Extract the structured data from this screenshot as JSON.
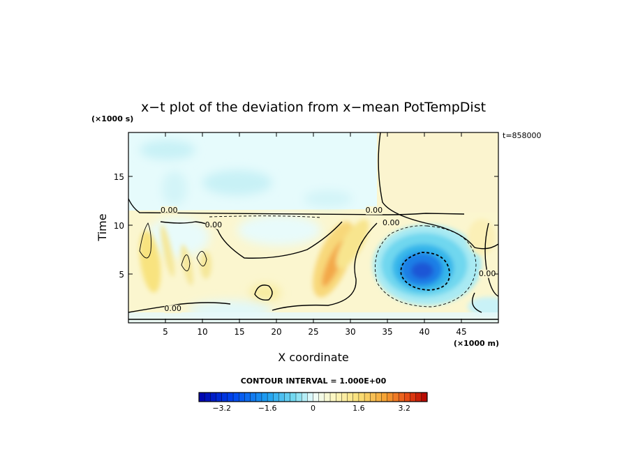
{
  "chart_data": {
    "type": "heatmap",
    "title": "x−t plot of the deviation from x−mean PotTempDist",
    "time_label": "t=858000",
    "xlabel": "X coordinate",
    "ylabel": "Time",
    "x_unit": "(×1000 m)",
    "y_unit": "(×1000 s)",
    "xlim": [
      0,
      50
    ],
    "ylim": [
      0,
      19.5
    ],
    "x_ticks": [
      5,
      10,
      15,
      20,
      25,
      30,
      35,
      40,
      45
    ],
    "y_ticks": [
      5,
      10,
      15
    ],
    "contour_interval_text": "CONTOUR INTERVAL = 1.000E+00",
    "contour_labels": [
      {
        "text": "0.00",
        "x": 5.5,
        "y": 11.3
      },
      {
        "text": "0.00",
        "x": 11.5,
        "y": 9.8
      },
      {
        "text": "0.00",
        "x": 33.2,
        "y": 11.3
      },
      {
        "text": "0.00",
        "x": 35.5,
        "y": 10.0
      },
      {
        "text": "0.00",
        "x": 48.5,
        "y": 4.8
      },
      {
        "text": "0.00",
        "x": 6.0,
        "y": 1.2
      }
    ],
    "features": [
      {
        "name": "cold anomaly",
        "center_x": 40.5,
        "center_t": 5.3,
        "peak_value": -3.2
      },
      {
        "name": "warm ridge",
        "center_x": 28,
        "center_t": 5.5,
        "peak_value": 2.0
      }
    ],
    "colorbar": {
      "min": -4,
      "max": 4,
      "tick_values": [
        -3.2,
        -1.6,
        0,
        1.6,
        3.2
      ],
      "tick_labels": [
        "−3.2",
        "−1.6",
        "0",
        "1.6",
        "3.2"
      ]
    }
  }
}
